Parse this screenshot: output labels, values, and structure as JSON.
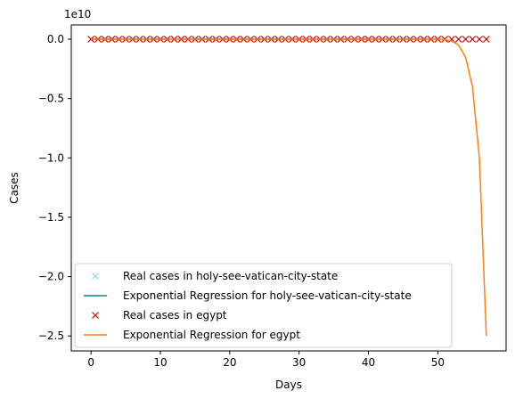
{
  "chart_data": {
    "type": "line",
    "title": "",
    "xlabel": "Days",
    "ylabel": "Cases",
    "y_offset_label": "1e10",
    "xlim": [
      -2.85,
      59.85
    ],
    "ylim": [
      -2.626,
      0.12
    ],
    "xticks": [
      0,
      10,
      20,
      30,
      40,
      50
    ],
    "xtick_labels": [
      "0",
      "10",
      "20",
      "30",
      "40",
      "50"
    ],
    "yticks": [
      0.0,
      -0.5,
      -1.0,
      -1.5,
      -2.0,
      -2.5
    ],
    "ytick_labels": [
      "0.0",
      "−0.5",
      "−1.0",
      "−1.5",
      "−2.0",
      "−2.5"
    ],
    "grid": false,
    "legend_position": "lower-left",
    "y_units_note": "values in units of 1e10",
    "series": [
      {
        "name": "Real cases in holy-see-vatican-city-state",
        "kind": "marker",
        "marker": "x",
        "color": "#87ceeb",
        "x": [
          0,
          1,
          2,
          3,
          4,
          5,
          6,
          7,
          8,
          9,
          10,
          11,
          12,
          13,
          14,
          15,
          16,
          17,
          18,
          19,
          20,
          21,
          22,
          23,
          24,
          25,
          26,
          27,
          28,
          29,
          30,
          31,
          32,
          33,
          34,
          35,
          36,
          37,
          38,
          39,
          40,
          41,
          42,
          43,
          44,
          45,
          46,
          47,
          48,
          49,
          50
        ],
        "y": [
          0,
          0,
          0,
          0,
          0,
          0,
          0,
          0,
          0,
          0,
          0,
          0,
          0,
          0,
          0,
          0,
          0,
          0,
          0,
          0,
          0,
          0,
          0,
          0,
          0,
          0,
          0,
          0,
          0,
          0,
          0,
          0,
          0,
          0,
          0,
          0,
          0,
          0,
          0,
          0,
          0,
          0,
          0,
          0,
          0,
          0,
          0,
          0,
          0,
          0,
          0
        ]
      },
      {
        "name": "Exponential Regression for holy-see-vatican-city-state",
        "kind": "line",
        "color": "#008b8b",
        "x": [
          0,
          50
        ],
        "y": [
          0,
          0
        ]
      },
      {
        "name": "Real cases in egypt",
        "kind": "marker",
        "marker": "x",
        "color": "#cc0000",
        "x": [
          0,
          1,
          2,
          3,
          4,
          5,
          6,
          7,
          8,
          9,
          10,
          11,
          12,
          13,
          14,
          15,
          16,
          17,
          18,
          19,
          20,
          21,
          22,
          23,
          24,
          25,
          26,
          27,
          28,
          29,
          30,
          31,
          32,
          33,
          34,
          35,
          36,
          37,
          38,
          39,
          40,
          41,
          42,
          43,
          44,
          45,
          46,
          47,
          48,
          49,
          50,
          51,
          52,
          53,
          54,
          55,
          56,
          57
        ],
        "y": [
          0,
          0,
          0,
          0,
          0,
          0,
          0,
          0,
          0,
          0,
          0,
          0,
          0,
          0,
          0,
          0,
          0,
          0,
          0,
          0,
          0,
          0,
          0,
          0,
          0,
          0,
          0,
          0,
          0,
          0,
          0,
          0,
          0,
          0,
          0,
          0,
          0,
          0,
          0,
          0,
          0,
          0,
          0,
          0,
          0,
          0,
          0,
          0,
          0,
          0,
          0,
          0,
          0,
          0,
          0,
          0,
          0,
          0
        ]
      },
      {
        "name": "Exponential Regression for egypt",
        "kind": "line",
        "color": "#ff7f0e",
        "x": [
          0,
          10,
          20,
          30,
          40,
          45,
          48,
          50,
          51,
          52,
          53,
          54,
          55,
          56,
          57
        ],
        "y": [
          0,
          0,
          0,
          0,
          0,
          0,
          0,
          0,
          -0.005,
          -0.015,
          -0.05,
          -0.15,
          -0.4,
          -1.0,
          -2.5
        ]
      }
    ]
  }
}
